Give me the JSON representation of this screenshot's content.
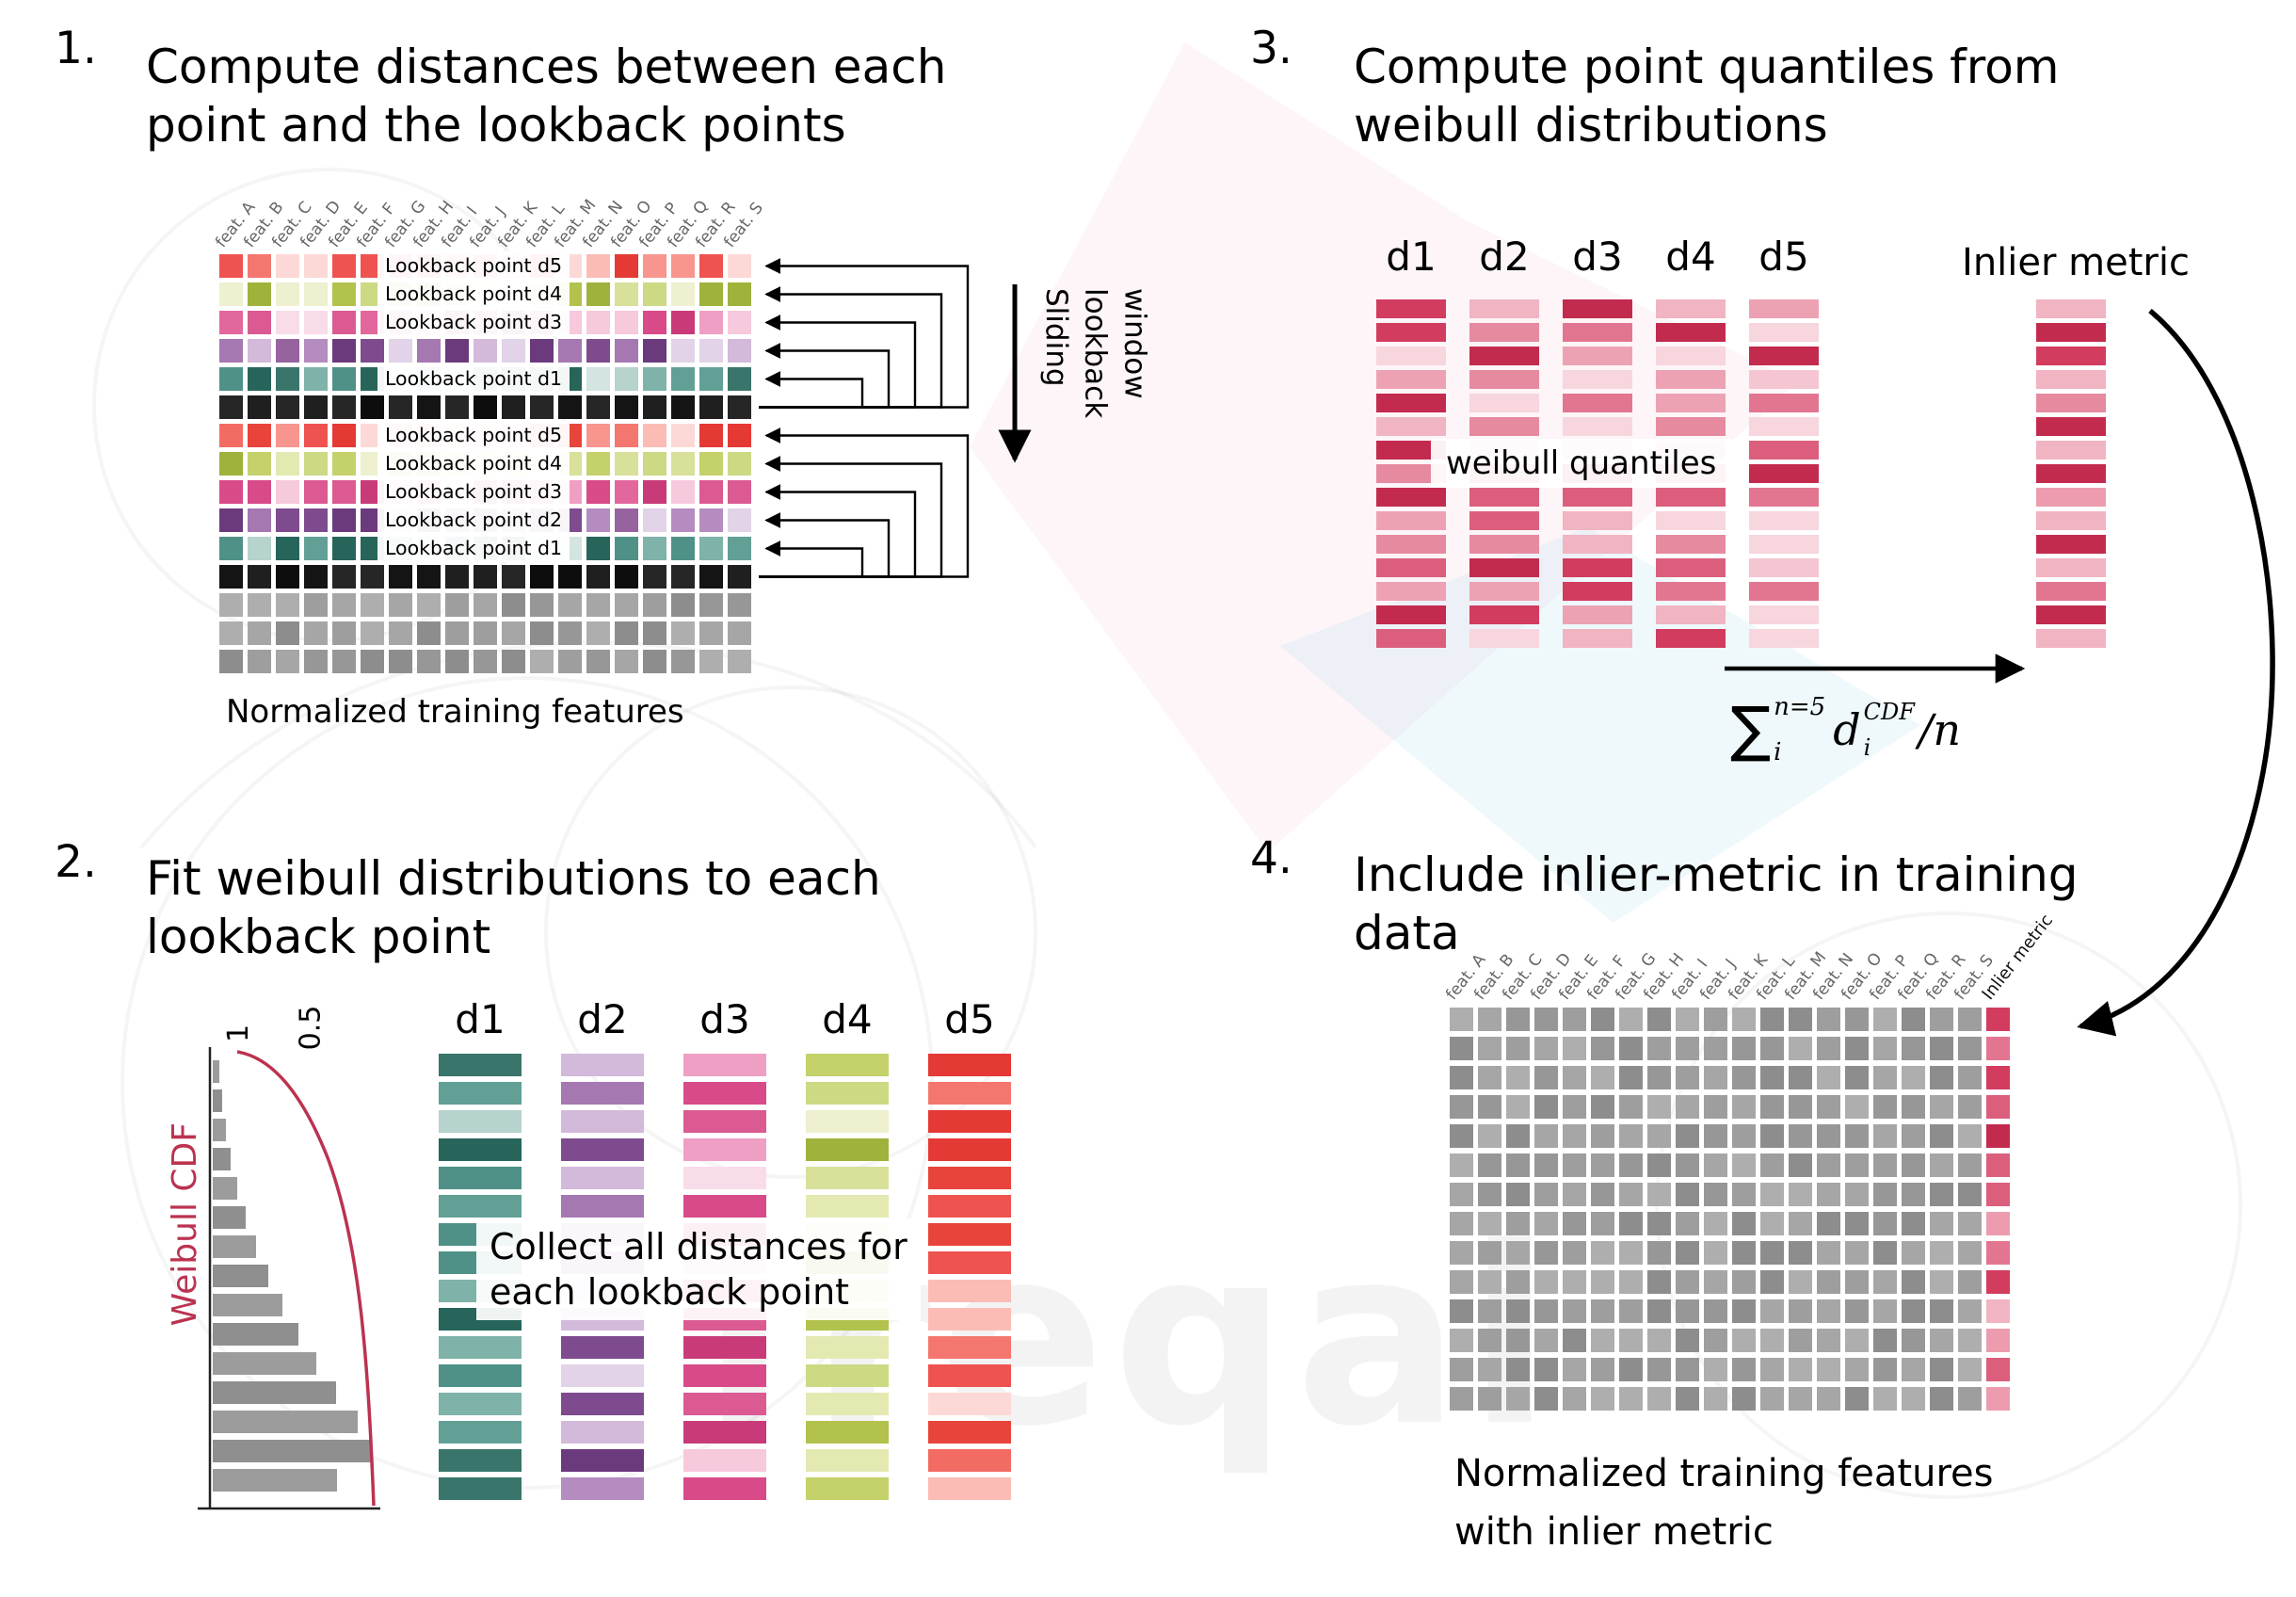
{
  "watermark": {
    "text": "freqai"
  },
  "palettes": {
    "d5": [
      "#ef5350",
      "#f26c63",
      "#e53935",
      "#f8958f",
      "#fbbcb6",
      "#f4776f",
      "#e8443c",
      "#fcd9d6"
    ],
    "d4": [
      "#c5d16b",
      "#b2c24c",
      "#d8e09a",
      "#9fb23b",
      "#cdd983",
      "#e4e9b2",
      "#eef0cf"
    ],
    "d3": [
      "#e2679c",
      "#d84a88",
      "#ef9fc4",
      "#f7c9dd",
      "#db5a92",
      "#c93b78",
      "#f9dce9"
    ],
    "d2": [
      "#96639f",
      "#7e4b8f",
      "#b48cc0",
      "#d3b9da",
      "#6b3a7d",
      "#a578b2",
      "#e2d3e8"
    ],
    "d1": [
      "#4f9187",
      "#39756b",
      "#7fb3aa",
      "#b7d3ce",
      "#27655b",
      "#62a096",
      "#d3e4e1"
    ],
    "black": [
      "#141414",
      "#1f1f1f",
      "#0d0d0d",
      "#262626"
    ],
    "gray": [
      "#9e9e9e",
      "#8d8d8d",
      "#aeaeae",
      "#979797",
      "#a6a6a6"
    ],
    "quant": [
      "#d23c5f",
      "#db5f7d",
      "#e68aa0",
      "#f0b4c2",
      "#c22b4e",
      "#e27691",
      "#eda2b4",
      "#f5c6d1",
      "#f7d6de"
    ],
    "inlier": [
      "#d23c5f",
      "#db5f7d",
      "#e68aa0",
      "#f0b4c2",
      "#e27691",
      "#c22b4e",
      "#ec9cae"
    ]
  },
  "panel1": {
    "number": "1.",
    "title_lines": [
      "Compute distances between each",
      "point and the lookback points"
    ],
    "features": [
      "feat. A",
      "feat. B",
      "feat. C",
      "feat. D",
      "feat. E",
      "feat. F",
      "feat. G",
      "feat. H",
      "feat. I",
      "feat. J",
      "feat. K",
      "feat. L",
      "feat. M",
      "feat. N",
      "feat. O",
      "feat. P",
      "feat. Q",
      "feat. R",
      "feat. S"
    ],
    "cols": 19,
    "rows": [
      {
        "palette": "d5",
        "label": "Lookback point d5"
      },
      {
        "palette": "d4",
        "label": "Lookback point d4"
      },
      {
        "palette": "d3",
        "label": "Lookback point d3"
      },
      {
        "palette": "d2",
        "label": ""
      },
      {
        "palette": "d1",
        "label": "Lookback point d1"
      },
      {
        "palette": "black",
        "label": ""
      },
      {
        "palette": "d5",
        "label": "Lookback point d5"
      },
      {
        "palette": "d4",
        "label": "Lookback point d4"
      },
      {
        "palette": "d3",
        "label": "Lookback point d3"
      },
      {
        "palette": "d2",
        "label": "Lookback point d2"
      },
      {
        "palette": "d1",
        "label": "Lookback point d1"
      },
      {
        "palette": "black",
        "label": ""
      },
      {
        "palette": "gray",
        "label": ""
      },
      {
        "palette": "gray",
        "label": ""
      },
      {
        "palette": "gray",
        "label": ""
      }
    ],
    "caption": "Normalized training features",
    "sliding_lines": [
      "Sliding",
      "lookback",
      "window"
    ]
  },
  "panel2": {
    "number": "2.",
    "title_lines": [
      "Fit weibull distributions to each",
      "lookback point"
    ],
    "axis": {
      "tick1": "1",
      "tick05": "0.5",
      "cdf_label": "Weibull CDF"
    },
    "histogram": [
      7,
      10,
      14,
      19,
      26,
      35,
      46,
      59,
      74,
      91,
      110,
      131,
      154,
      168,
      132
    ],
    "columns": [
      {
        "label": "d1",
        "palette": "d1"
      },
      {
        "label": "d2",
        "palette": "d2"
      },
      {
        "label": "d3",
        "palette": "d3"
      },
      {
        "label": "d4",
        "palette": "d4"
      },
      {
        "label": "d5",
        "palette": "d5"
      }
    ],
    "bars_per_column": 16,
    "overlay_lines": [
      "Collect all distances for",
      "each lookback point"
    ]
  },
  "panel3": {
    "number": "3.",
    "title_lines": [
      "Compute point quantiles from",
      "weibull distributions"
    ],
    "column_labels": [
      "d1",
      "d2",
      "d3",
      "d4",
      "d5"
    ],
    "bars_per_column": 15,
    "quantile_label": "weibull quantiles",
    "inlier_label": "Inlier metric",
    "formula": {
      "sum": "∑",
      "sup": "n=5",
      "sub": "i",
      "d": "d",
      "dsub": "i",
      "dsup": "CDF",
      "rest": "/n"
    }
  },
  "panel4": {
    "number": "4.",
    "title_lines": [
      "Include inlier-metric in training",
      "data"
    ],
    "features": [
      "feat. A",
      "feat. B",
      "feat. C",
      "feat. D",
      "feat. E",
      "feat. F",
      "feat. G",
      "feat. H",
      "feat. I",
      "feat. J",
      "feat. K",
      "feat. L",
      "feat. M",
      "feat. N",
      "feat. O",
      "feat. P",
      "feat. Q",
      "feat. R",
      "feat. S",
      "Inlier metric"
    ],
    "rows": 14,
    "caption_lines": [
      "Normalized training features",
      "with inlier metric"
    ]
  }
}
